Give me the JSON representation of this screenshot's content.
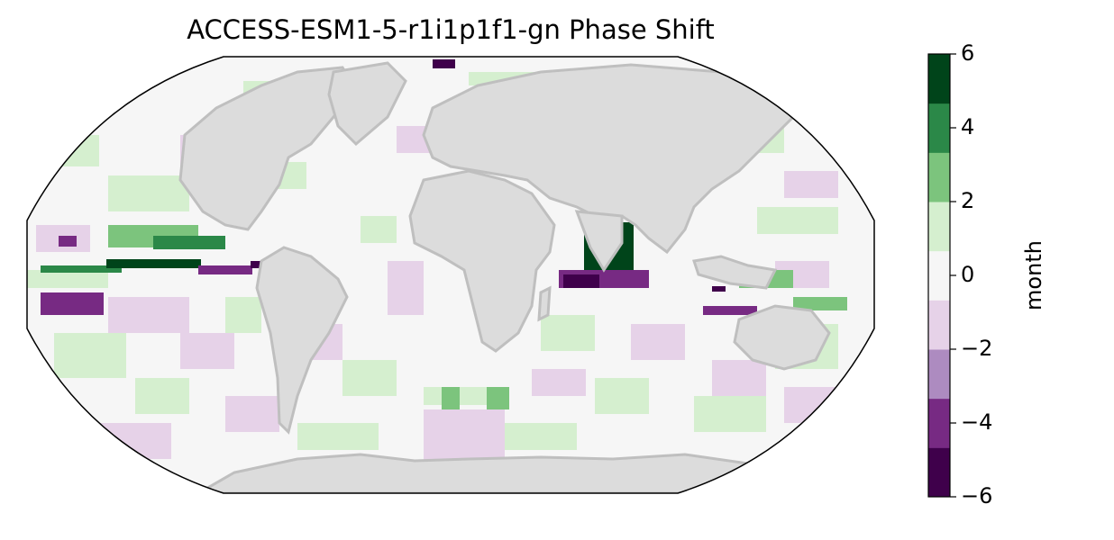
{
  "title": "ACCESS-ESM1-5-r1i1p1f1-gn Phase Shift",
  "colorbar": {
    "label": "month",
    "min": -6,
    "max": 6,
    "ticks": [
      "6",
      "4",
      "2",
      "0",
      "−2",
      "−4",
      "−6"
    ],
    "colors": [
      "#3f004b",
      "#772a83",
      "#ad8bc0",
      "#e6d2e8",
      "#f6f6f6",
      "#d5efcf",
      "#7cc47d",
      "#2b8848",
      "#00441a"
    ]
  },
  "map": {
    "projection": "Robinson",
    "land_color": "#dcdcdc",
    "coast_color": "#bfbfbf"
  }
}
